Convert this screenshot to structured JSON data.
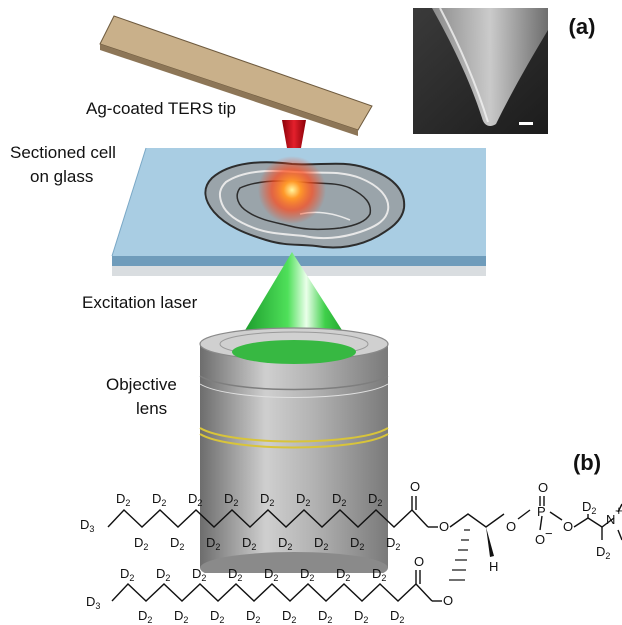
{
  "panels": {
    "a": "(a)",
    "b": "(b)"
  },
  "labels": {
    "tip": "Ag-coated TERS tip",
    "cell_line1": "Sectioned cell",
    "cell_line2": "on glass",
    "laser": "Excitation laser",
    "objective_line1": "Objective",
    "objective_line2": "lens"
  },
  "molecule": {
    "methyl": "D",
    "methyl_sub": "3",
    "methylene": "D",
    "methylene_sub": "2",
    "hydrogen": "H",
    "phosphorus": "P",
    "oxygen": "O",
    "oxygen_minus": "O",
    "minus": "−",
    "nitrogen": "N",
    "plus": "+"
  },
  "colors": {
    "cantilever": "#c8b08a",
    "laser_red": "#c0000e",
    "laser_green": "#2fc23a",
    "glass_top": "#b8d8ea",
    "glass_side": "#7fb1d0",
    "objective": "#a8a8a8",
    "objective_band": "#d8c43a"
  }
}
